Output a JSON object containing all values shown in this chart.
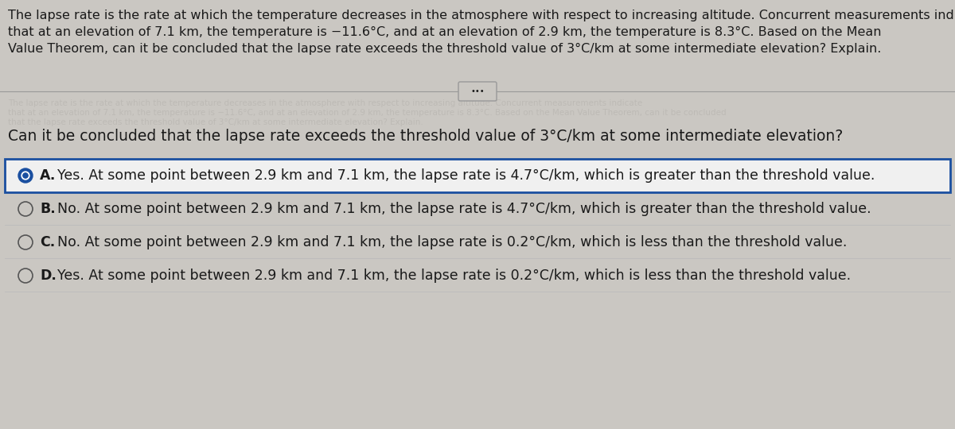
{
  "background_color": "#cac7c2",
  "paragraph_text_lines": [
    "The lapse rate is the rate at which the temperature decreases in the atmosphere with respect to increasing altitude. Concurrent measurements indicate",
    "that at an elevation of 7.1 km, the temperature is −11.6°C, and at an elevation of 2.9 km, the temperature is 8.3°C. Based on the Mean",
    "Value Theorem, can it be concluded that the lapse rate exceeds the threshold value of 3°C/km at some intermediate elevation? Explain."
  ],
  "divider_button_text": "•••",
  "question_text": "Can it be concluded that the lapse rate exceeds the threshold value of 3°C/km at some intermediate elevation?",
  "options": [
    {
      "label": "A.",
      "text": "Yes. At some point between 2.9 km and 7.1 km, the lapse rate is 4.7°C/km, which is greater than the threshold value.",
      "selected": true
    },
    {
      "label": "B.",
      "text": "No. At some point between 2.9 km and 7.1 km, the lapse rate is 4.7°C/km, which is greater than the threshold value.",
      "selected": false
    },
    {
      "label": "C.",
      "text": "No. At some point between 2.9 km and 7.1 km, the lapse rate is 0.2°C/km, which is less than the threshold value.",
      "selected": false
    },
    {
      "label": "D.",
      "text": "Yes. At some point between 2.9 km and 7.1 km, the lapse rate is 0.2°C/km, which is less than the threshold value.",
      "selected": false
    }
  ],
  "text_color": "#1a1a1a",
  "selected_box_color": "#1a4fa0",
  "selected_fill_color": "#f0f0f0",
  "font_size_paragraph": 11.5,
  "font_size_question": 13.5,
  "font_size_options": 12.5,
  "radio_selected_outer": "#1a4fa0",
  "radio_unselected": "#555555",
  "line_color": "#999999",
  "separator_color": "#bbbbbb",
  "watermark_color": "#b8b5b0"
}
